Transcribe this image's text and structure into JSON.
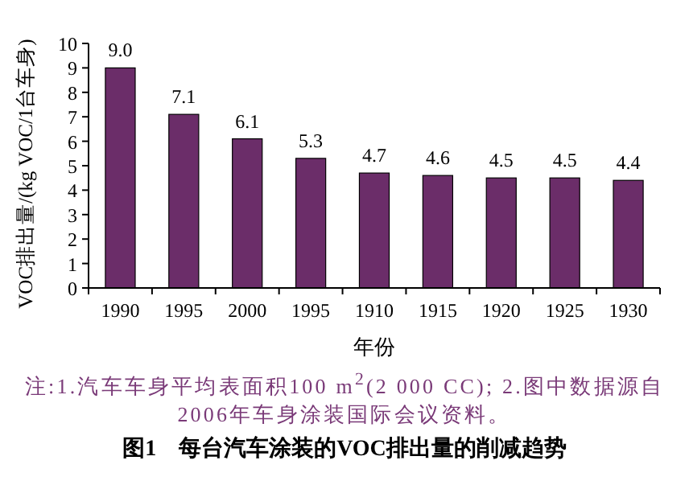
{
  "chart_data": {
    "type": "bar",
    "title": "图1　每台汽车涂装的VOC排出量的削减趋势",
    "xlabel": "年份",
    "ylabel": "VOC排出量/(kg VOC/1台车身)",
    "categories": [
      "1990",
      "1995",
      "2000",
      "1995",
      "1910",
      "1915",
      "1920",
      "1925",
      "1930"
    ],
    "values": [
      9.0,
      7.1,
      6.1,
      5.3,
      4.7,
      4.6,
      4.5,
      4.5,
      4.4
    ],
    "value_labels": [
      "9.0",
      "7.1",
      "6.1",
      "5.3",
      "4.7",
      "4.6",
      "4.5",
      "4.5",
      "4.4"
    ],
    "color": "#6b2d69",
    "ylim": [
      0,
      10
    ],
    "yticks": [
      0,
      1,
      2,
      3,
      4,
      5,
      6,
      7,
      8,
      9,
      10
    ],
    "grid": false,
    "annotations": [
      "注:1.汽车车身平均表面积100 m$^{2}$(2 000 CC); 2.图中数据源自2006年车身涂装国际会议资料。"
    ]
  }
}
